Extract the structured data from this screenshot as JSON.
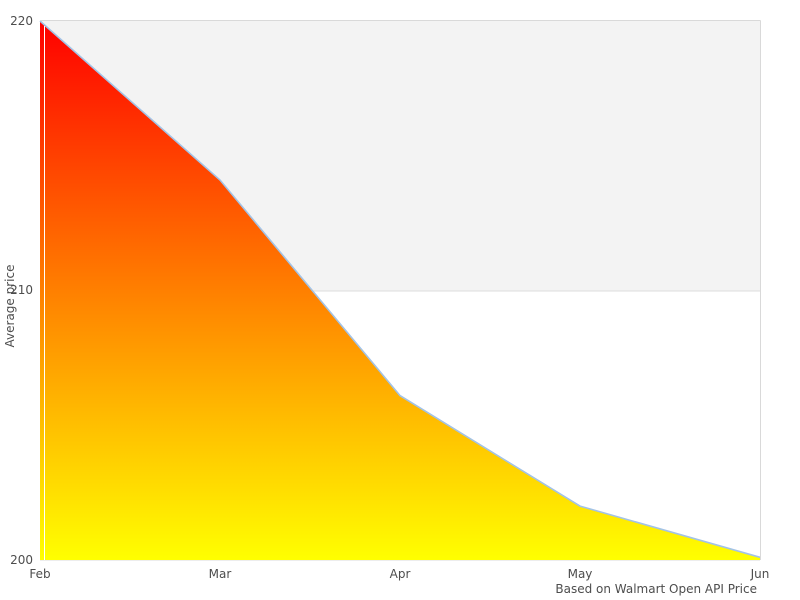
{
  "chart_data": {
    "type": "area",
    "title": "",
    "categories": [
      "Feb",
      "Mar",
      "Apr",
      "May",
      "Jun"
    ],
    "values": [
      220,
      214.1,
      206.1,
      202,
      200.1
    ],
    "series_name": "Average price",
    "xlabel": "",
    "ylabel": "Average price",
    "ylim": [
      200,
      220
    ],
    "yticks": [
      "220",
      "210",
      "200"
    ],
    "gridlines": [
      210
    ],
    "plot_band": {
      "from": 210,
      "to": 220,
      "color": "#f3f3f3"
    },
    "caption": "Based on Walmart Open API Price",
    "legend": "none",
    "grid": "partial",
    "colors": {
      "gradient_top": "#ff0000",
      "gradient_bottom": "#ffff00",
      "line": "#a3c3e6",
      "border": "#d9d9d9",
      "gridline": "#dedede",
      "baseline": "#ededed",
      "axis_overlay": "#ffffff",
      "text": "#4d4d4d",
      "background": "#ffffff"
    }
  }
}
